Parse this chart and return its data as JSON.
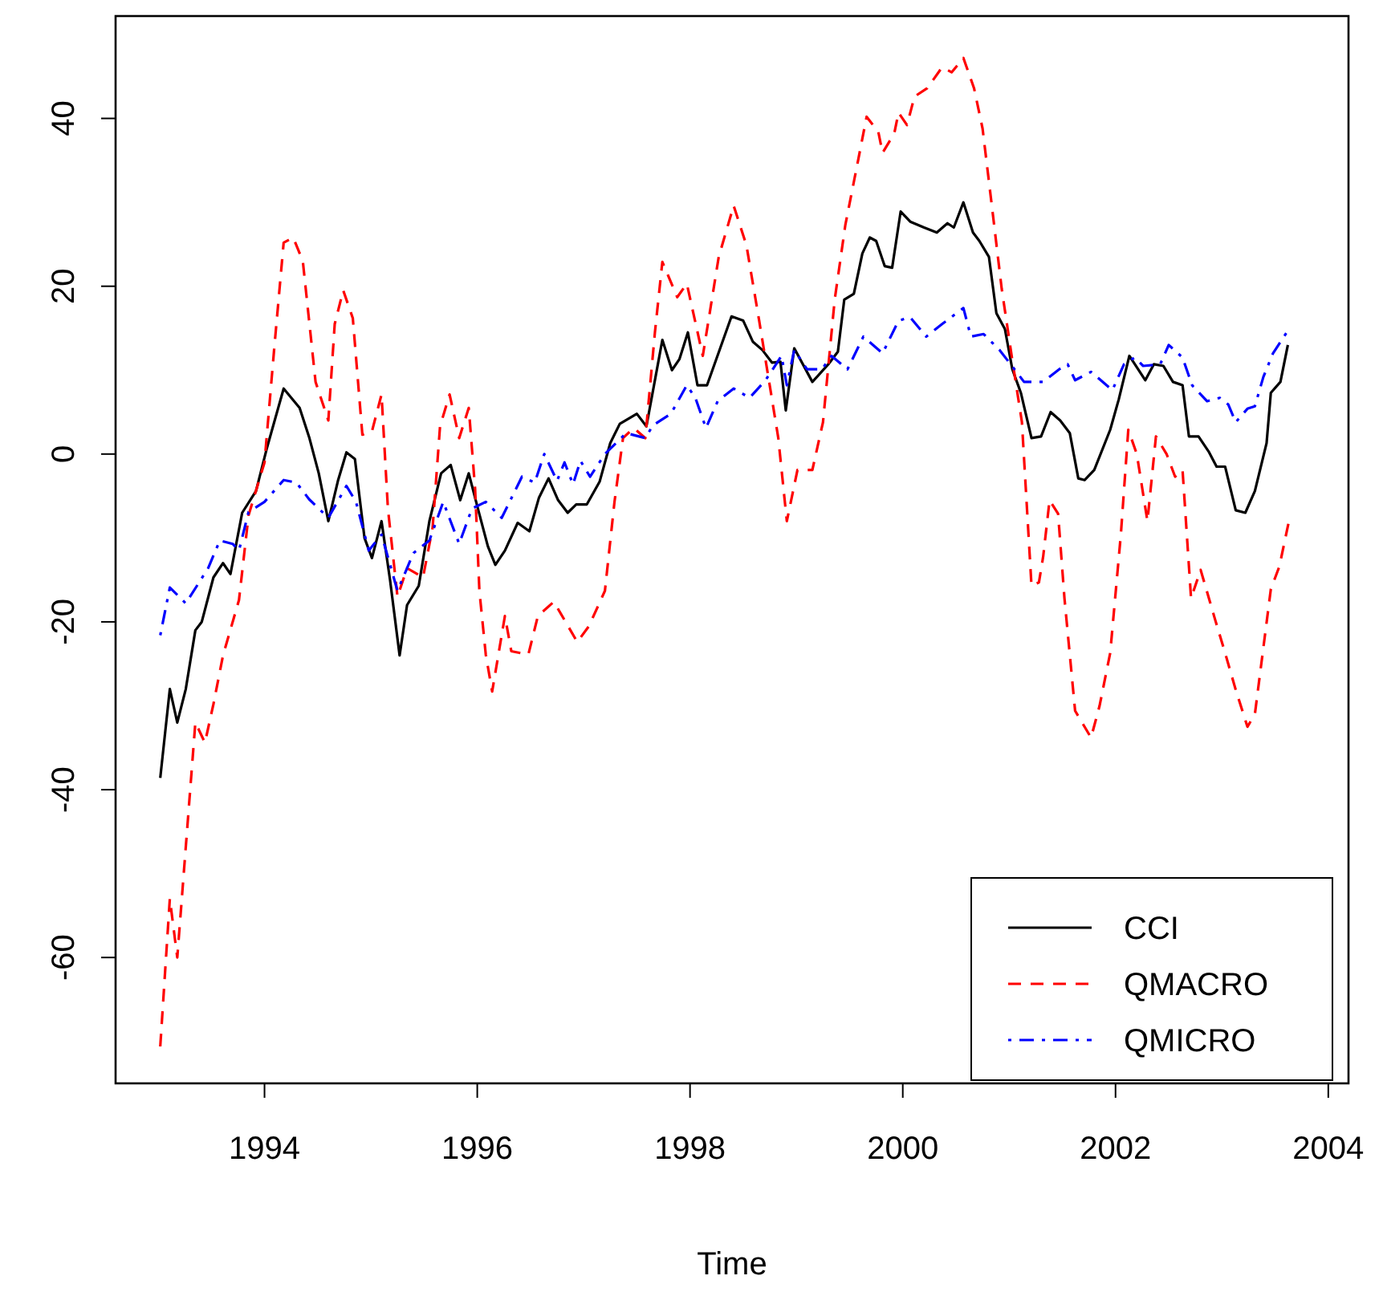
{
  "chart_data": {
    "type": "line",
    "xlabel": "Time",
    "xlim": [
      1992.6,
      2004.19
    ],
    "ylim": [
      -75,
      52.2
    ],
    "xticks": [
      1994,
      1996,
      1998,
      2000,
      2002,
      2004
    ],
    "yticks": [
      -60,
      -40,
      -20,
      0,
      20,
      40
    ],
    "grid": false,
    "legend": "bottom right",
    "marker": "none",
    "series": [
      {
        "name": "CCI",
        "color": "#000000",
        "line_style": "solid",
        "x": [
          1993.02,
          1993.11,
          1993.18,
          1993.26,
          1993.35,
          1993.41,
          1993.52,
          1993.61,
          1993.68,
          1993.79,
          1993.92,
          1994.02,
          1994.18,
          1994.33,
          1994.42,
          1994.51,
          1994.6,
          1994.69,
          1994.77,
          1994.85,
          1994.94,
          1995.01,
          1995.1,
          1995.18,
          1995.27,
          1995.34,
          1995.45,
          1995.55,
          1995.66,
          1995.75,
          1995.84,
          1995.92,
          1996.01,
          1996.1,
          1996.17,
          1996.26,
          1996.38,
          1996.49,
          1996.58,
          1996.67,
          1996.76,
          1996.85,
          1996.93,
          1997.03,
          1997.15,
          1997.25,
          1997.34,
          1997.5,
          1997.59,
          1997.74,
          1997.83,
          1997.9,
          1997.98,
          1998.07,
          1998.16,
          1998.39,
          1998.5,
          1998.59,
          1998.68,
          1998.77,
          1998.85,
          1998.9,
          1998.98,
          1999.15,
          1999.3,
          1999.39,
          1999.45,
          1999.54,
          1999.62,
          1999.69,
          1999.75,
          1999.83,
          1999.9,
          1999.98,
          2000.07,
          2000.2,
          2000.32,
          2000.42,
          2000.48,
          2000.57,
          2000.66,
          2000.72,
          2000.81,
          2000.88,
          2000.96,
          2001.03,
          2001.11,
          2001.21,
          2001.3,
          2001.39,
          2001.48,
          2001.57,
          2001.65,
          2001.71,
          2001.8,
          2001.95,
          2002.03,
          2002.13,
          2002.28,
          2002.36,
          2002.45,
          2002.54,
          2002.63,
          2002.69,
          2002.78,
          2002.88,
          2002.95,
          2003.03,
          2003.13,
          2003.22,
          2003.31,
          2003.42,
          2003.46,
          2003.55,
          2003.62
        ],
        "values": [
          -38.6,
          -28,
          -32,
          -28,
          -21,
          -20,
          -14.7,
          -13,
          -14.3,
          -7,
          -4.4,
          0.6,
          7.8,
          5.5,
          2,
          -2.3,
          -8,
          -3.2,
          0.2,
          -0.6,
          -10,
          -12.4,
          -8,
          -15,
          -24,
          -18,
          -15.7,
          -8,
          -2.3,
          -1.3,
          -5.5,
          -2.3,
          -6.7,
          -11,
          -13.2,
          -11.5,
          -8.2,
          -9.2,
          -5.2,
          -2.9,
          -5.5,
          -7,
          -6,
          -6,
          -3.3,
          1.3,
          3.6,
          4.8,
          3.3,
          13.6,
          10,
          11.3,
          14.5,
          8.2,
          8.2,
          16.4,
          15.9,
          13.4,
          12.4,
          10.9,
          11,
          5.2,
          12.6,
          8.6,
          10.7,
          12.2,
          18.4,
          19.1,
          23.9,
          25.8,
          25.4,
          22.4,
          22.2,
          28.9,
          27.7,
          27,
          26.4,
          27.5,
          27,
          30,
          26.4,
          25.4,
          23.5,
          16.8,
          14.9,
          10.1,
          7.3,
          1.9,
          2.1,
          5,
          4,
          2.5,
          -2.9,
          -3.1,
          -1.9,
          2.9,
          6.5,
          11.7,
          8.8,
          10.7,
          10.5,
          8.6,
          8.2,
          2.1,
          2.1,
          0.2,
          -1.5,
          -1.5,
          -6.7,
          -7,
          -4.4,
          1.3,
          7.3,
          8.6,
          13
        ]
      },
      {
        "name": "QMACRO",
        "color": "#ff0000",
        "line_style": "dashed",
        "x": [
          1993.02,
          1993.11,
          1993.18,
          1993.35,
          1993.44,
          1993.52,
          1993.61,
          1993.76,
          1993.85,
          1994.0,
          1994.09,
          1994.18,
          1994.27,
          1994.36,
          1994.48,
          1994.6,
          1994.66,
          1994.74,
          1994.83,
          1994.92,
          1995.01,
          1995.1,
          1995.16,
          1995.25,
          1995.34,
          1995.49,
          1995.58,
          1995.65,
          1995.74,
          1995.83,
          1995.92,
          1995.98,
          1996.02,
          1996.08,
          1996.14,
          1996.26,
          1996.32,
          1996.48,
          1996.57,
          1996.72,
          1996.94,
          1997.05,
          1997.2,
          1997.29,
          1997.37,
          1997.47,
          1997.58,
          1997.67,
          1997.74,
          1997.88,
          1997.97,
          1998.12,
          1998.27,
          1998.41,
          1998.53,
          1998.65,
          1998.83,
          1998.91,
          1999.01,
          1999.15,
          1999.25,
          1999.36,
          1999.46,
          1999.58,
          1999.66,
          1999.77,
          1999.81,
          1999.92,
          1999.96,
          2000.04,
          2000.11,
          2000.23,
          2000.37,
          2000.46,
          2000.57,
          2000.67,
          2000.75,
          2000.84,
          2000.93,
          2001.02,
          2001.12,
          2001.21,
          2001.28,
          2001.32,
          2001.38,
          2001.46,
          2001.52,
          2001.62,
          2001.77,
          2001.85,
          2001.95,
          2002.05,
          2002.12,
          2002.2,
          2002.3,
          2002.38,
          2002.48,
          2002.56,
          2002.63,
          2002.71,
          2002.8,
          2002.94,
          2003.03,
          2003.13,
          2003.24,
          2003.31,
          2003.46,
          2003.54,
          2003.63
        ],
        "values": [
          -70.6,
          -53,
          -60,
          -32,
          -34.4,
          -29.8,
          -24,
          -17.4,
          -7.3,
          -1,
          12.4,
          25.2,
          25.8,
          23,
          8.6,
          4,
          15.5,
          19.5,
          16.2,
          2.3,
          2.7,
          7.1,
          -6.5,
          -17,
          -13.6,
          -14.7,
          -8.8,
          3.3,
          7.1,
          1.9,
          5.5,
          -4.2,
          -16.3,
          -23.9,
          -28.3,
          -19.3,
          -23.5,
          -23.9,
          -19.3,
          -17.6,
          -22.4,
          -20.5,
          -16.3,
          -5.7,
          1.9,
          3.1,
          1.9,
          14.5,
          22.9,
          18.7,
          20.3,
          11.7,
          23.5,
          29.6,
          24.9,
          15.9,
          1.9,
          -8,
          -1.9,
          -1.9,
          3.8,
          18.4,
          27.3,
          35,
          40.2,
          38.4,
          35.9,
          38.2,
          40.7,
          39.2,
          42.6,
          43.6,
          46.1,
          45.5,
          47.2,
          43.6,
          38.8,
          29.3,
          19.7,
          12,
          3.8,
          -15.7,
          -15.3,
          -12.2,
          -5.5,
          -7.1,
          -17.2,
          -30.6,
          -33.8,
          -30,
          -23.7,
          -9.6,
          2.9,
          0,
          -8,
          2.1,
          0,
          -2.7,
          -1.9,
          -17.2,
          -13.8,
          -19.9,
          -23.7,
          -28.1,
          -32.5,
          -31,
          -16.1,
          -13.4,
          -8
        ]
      },
      {
        "name": "QMICRO",
        "color": "#0000ff",
        "line_style": "dashdot",
        "x": [
          1993.02,
          1993.11,
          1993.26,
          1993.47,
          1993.58,
          1993.7,
          1993.76,
          1993.85,
          1994.0,
          1994.18,
          1994.3,
          1994.42,
          1994.6,
          1994.77,
          1994.86,
          1994.98,
          1995.1,
          1995.25,
          1995.4,
          1995.55,
          1995.68,
          1995.83,
          1995.95,
          1996.08,
          1996.23,
          1996.42,
          1996.54,
          1996.63,
          1996.75,
          1996.82,
          1996.9,
          1996.97,
          1997.06,
          1997.2,
          1997.4,
          1997.58,
          1997.65,
          1997.82,
          1997.97,
          1998.05,
          1998.15,
          1998.26,
          1998.41,
          1998.56,
          1998.71,
          1998.86,
          1998.91,
          1998.98,
          1999.1,
          1999.24,
          1999.33,
          1999.48,
          1999.63,
          1999.81,
          1999.96,
          2000.07,
          2000.22,
          2000.37,
          2000.57,
          2000.64,
          2000.76,
          2000.91,
          2001.05,
          2001.14,
          2001.32,
          2001.47,
          2001.55,
          2001.62,
          2001.77,
          2001.97,
          2002.08,
          2002.18,
          2002.26,
          2002.42,
          2002.5,
          2002.63,
          2002.72,
          2002.86,
          2002.98,
          2003.06,
          2003.13,
          2003.24,
          2003.31,
          2003.39,
          2003.48,
          2003.63
        ],
        "values": [
          -21.6,
          -15.9,
          -17.8,
          -13.6,
          -10.3,
          -10.7,
          -11.5,
          -6.9,
          -5.7,
          -3.1,
          -3.4,
          -5.4,
          -7.6,
          -3.8,
          -5.7,
          -11.5,
          -9.6,
          -16.3,
          -11.8,
          -10.3,
          -5.7,
          -10.7,
          -6.5,
          -5.7,
          -7.6,
          -2.7,
          -3.4,
          0,
          -3.2,
          -1,
          -3.6,
          -0.8,
          -2.7,
          0,
          2.5,
          1.9,
          3.4,
          4.8,
          8.2,
          6.7,
          3.1,
          6.3,
          7.8,
          6.7,
          8.8,
          11.7,
          8.2,
          12.4,
          10.1,
          10.1,
          11.7,
          10.1,
          14,
          12,
          15.9,
          16.3,
          14,
          15.5,
          17.4,
          14,
          14.3,
          12.4,
          10.1,
          8.6,
          8.6,
          10.1,
          10.7,
          8.8,
          9.8,
          7.6,
          10.7,
          11.5,
          10.5,
          10.7,
          13,
          11.5,
          8.2,
          6.3,
          6.7,
          5.9,
          3.8,
          5.4,
          5.7,
          9.2,
          12,
          14.9
        ]
      }
    ]
  }
}
